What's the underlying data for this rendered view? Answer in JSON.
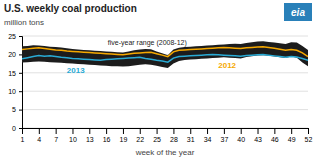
{
  "chart_data": {
    "type": "line",
    "title": "U.S. weekly coal production",
    "ylabel": "million tons",
    "xlabel": "week of the year",
    "x": [
      1,
      2,
      3,
      4,
      5,
      6,
      7,
      8,
      9,
      10,
      11,
      12,
      13,
      14,
      15,
      16,
      17,
      18,
      19,
      20,
      21,
      22,
      23,
      24,
      25,
      26,
      27,
      28,
      29,
      30,
      31,
      32,
      33,
      34,
      35,
      36,
      37,
      38,
      39,
      40,
      41,
      42,
      43,
      44,
      45,
      46,
      47,
      48,
      49,
      50,
      51,
      52
    ],
    "xlim": [
      1,
      52
    ],
    "xticks": [
      1,
      4,
      7,
      10,
      13,
      16,
      19,
      22,
      25,
      28,
      31,
      34,
      37,
      40,
      43,
      46,
      49,
      52
    ],
    "ylim": [
      0,
      25
    ],
    "yticks": [
      0,
      5,
      10,
      15,
      20,
      25
    ],
    "grid": true,
    "series": [
      {
        "name": "five-year range (2008-12)",
        "type": "band",
        "color": "#1c1c1c",
        "lower": [
          17.8,
          17.9,
          18.0,
          18.1,
          18.0,
          17.9,
          17.8,
          17.7,
          17.6,
          17.5,
          17.4,
          17.3,
          17.2,
          17.1,
          17.0,
          16.9,
          16.8,
          16.8,
          16.7,
          16.8,
          17.0,
          17.2,
          17.3,
          17.2,
          16.9,
          16.6,
          16.3,
          17.5,
          18.2,
          18.5,
          18.6,
          18.7,
          18.8,
          18.9,
          19.0,
          19.1,
          19.2,
          19.1,
          19.0,
          18.9,
          19.3,
          19.5,
          19.7,
          19.8,
          19.6,
          19.4,
          19.2,
          19.0,
          19.4,
          19.1,
          17.8,
          16.8
        ],
        "upper": [
          22.2,
          22.3,
          22.5,
          22.4,
          22.3,
          22.1,
          22.0,
          21.9,
          21.7,
          21.5,
          21.3,
          21.2,
          21.1,
          21.0,
          20.9,
          20.8,
          20.7,
          20.6,
          20.5,
          20.8,
          21.1,
          21.3,
          21.5,
          21.4,
          20.8,
          20.3,
          19.8,
          21.3,
          21.8,
          22.0,
          22.1,
          22.2,
          22.3,
          22.4,
          22.5,
          22.6,
          22.7,
          22.8,
          22.9,
          22.8,
          23.1,
          23.3,
          23.5,
          23.6,
          23.4,
          23.2,
          23.0,
          22.8,
          23.3,
          23.2,
          22.3,
          21.2
        ]
      },
      {
        "name": "2012",
        "type": "line",
        "color": "#f5a800",
        "values": [
          21.3,
          21.5,
          21.7,
          21.8,
          21.6,
          21.4,
          21.2,
          21.1,
          20.9,
          20.8,
          20.7,
          20.6,
          20.5,
          20.4,
          20.3,
          20.2,
          20.1,
          20.0,
          19.9,
          20.1,
          20.3,
          20.4,
          20.5,
          20.6,
          20.2,
          19.8,
          19.4,
          20.7,
          21.1,
          21.2,
          21.3,
          21.4,
          21.5,
          21.6,
          21.7,
          21.8,
          21.9,
          21.8,
          21.7,
          21.6,
          21.8,
          21.9,
          22.0,
          22.1,
          21.9,
          21.7,
          21.4,
          21.1,
          21.3,
          21.1,
          20.4,
          19.4
        ]
      },
      {
        "name": "2013",
        "type": "line",
        "color": "#29aad4",
        "values": [
          18.8,
          19.1,
          19.4,
          19.7,
          19.5,
          19.6,
          19.4,
          19.2,
          19.1,
          18.9,
          18.8,
          18.7,
          18.6,
          18.5,
          18.4,
          18.6,
          18.7,
          18.8,
          18.9,
          19.0,
          19.1,
          19.2,
          18.9,
          18.7,
          18.4,
          18.2,
          17.9,
          19.0,
          19.4,
          19.5,
          19.6,
          19.7,
          19.8,
          19.9,
          20.0,
          19.9,
          19.8,
          19.7,
          19.6,
          19.5,
          19.7,
          19.8,
          19.9,
          20.0,
          19.8,
          19.6,
          19.4,
          19.2,
          19.4,
          19.3,
          18.9,
          18.4
        ]
      }
    ],
    "annotations": [
      {
        "text": "eia",
        "color": "#2980b9"
      }
    ]
  }
}
